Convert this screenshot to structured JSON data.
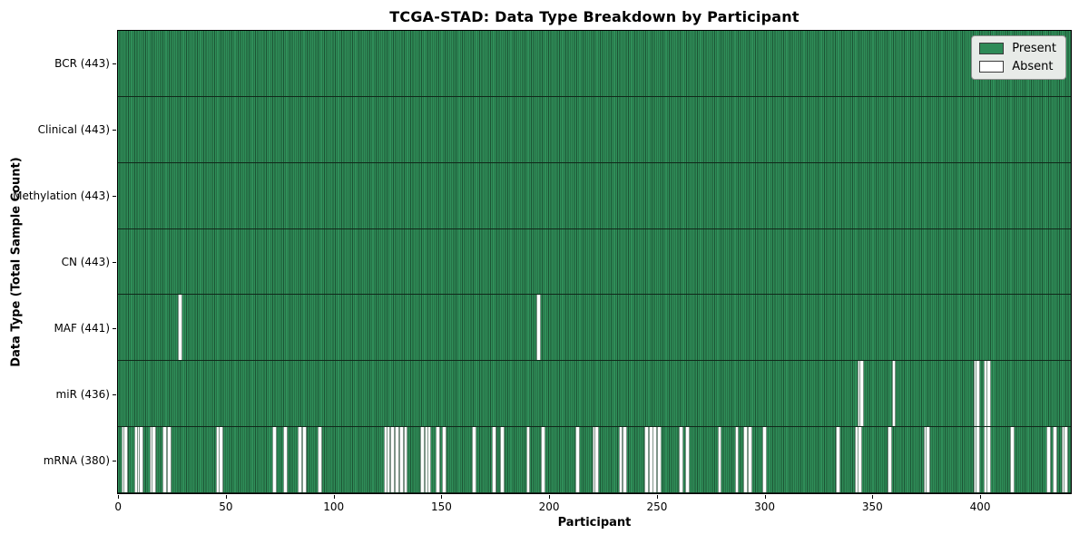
{
  "chart_data": {
    "type": "heatmap",
    "title": "TCGA-STAD: Data Type Breakdown by Participant",
    "xlabel": "Participant",
    "ylabel": "Data Type (Total Sample Count)",
    "n_participants": 443,
    "x_axis": {
      "range": [
        0,
        443
      ],
      "ticks": [
        0,
        50,
        100,
        150,
        200,
        250,
        300,
        350,
        400
      ]
    },
    "legend": {
      "position": "upper right",
      "entries": [
        {
          "label": "Present",
          "color": "#2e8b57"
        },
        {
          "label": "Absent",
          "color": "#ffffff"
        }
      ]
    },
    "colors": {
      "present_fill": "#2f8e59",
      "bar_edge": "#1c5434",
      "row_separator": "#10281a",
      "axis": "#000000",
      "legend_bg": "#e8ebe8"
    },
    "rows": [
      {
        "data_type": "BCR",
        "label": "BCR (443)",
        "present_count": 443,
        "absent_participants": []
      },
      {
        "data_type": "Clinical",
        "label": "Clinical (443)",
        "present_count": 443,
        "absent_participants": []
      },
      {
        "data_type": "Methylation",
        "label": "Methylation (443)",
        "present_count": 443,
        "absent_participants": []
      },
      {
        "data_type": "CN",
        "label": "CN (443)",
        "present_count": 443,
        "absent_participants": []
      },
      {
        "data_type": "MAF",
        "label": "MAF (441)",
        "present_count": 441,
        "absent_participants": [
          28,
          195
        ]
      },
      {
        "data_type": "miR",
        "label": "miR (436)",
        "present_count": 436,
        "absent_participants": [
          344,
          345,
          360,
          398,
          399,
          403,
          404
        ]
      },
      {
        "data_type": "mRNA",
        "label": "mRNA (380)",
        "present_count": 380,
        "absent_participants": [
          2,
          3,
          8,
          9,
          10,
          15,
          16,
          21,
          23,
          46,
          47,
          72,
          77,
          84,
          86,
          93,
          124,
          125,
          127,
          129,
          131,
          133,
          141,
          143,
          144,
          148,
          151,
          165,
          174,
          178,
          190,
          197,
          213,
          221,
          222,
          233,
          235,
          245,
          247,
          249,
          251,
          261,
          264,
          279,
          287,
          291,
          293,
          300,
          334,
          343,
          344,
          358,
          375,
          376,
          398,
          399,
          403,
          404,
          415,
          432,
          435,
          439,
          440
        ]
      }
    ]
  }
}
